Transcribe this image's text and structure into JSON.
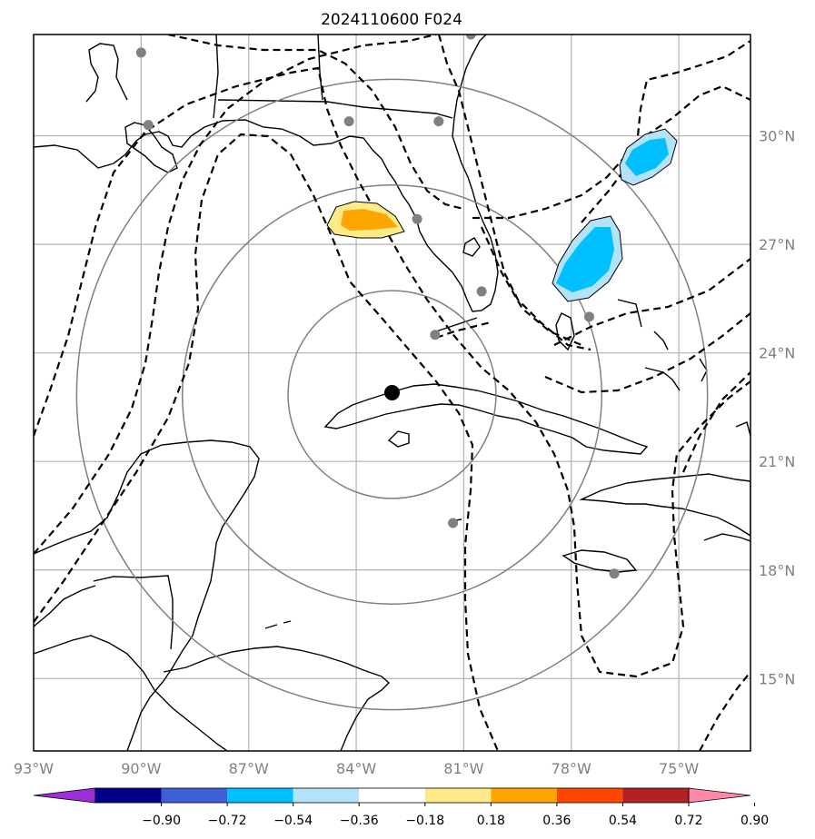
{
  "map": {
    "title": "2024110600 F024",
    "extent": {
      "lon": [
        -93,
        -73.0
      ],
      "lat": [
        13.0,
        32.8
      ]
    },
    "lon_ticks": [
      {
        "value": -93,
        "label": "93°W"
      },
      {
        "value": -90,
        "label": "90°W"
      },
      {
        "value": -87,
        "label": "87°W"
      },
      {
        "value": -84,
        "label": "84°W"
      },
      {
        "value": -81,
        "label": "81°W"
      },
      {
        "value": -78,
        "label": "78°W"
      },
      {
        "value": -75,
        "label": "75°W"
      }
    ],
    "lat_ticks": [
      {
        "value": 30,
        "label": "30°N"
      },
      {
        "value": 27,
        "label": "27°N"
      },
      {
        "value": 24,
        "label": "24°N"
      },
      {
        "value": 21,
        "label": "21°N"
      },
      {
        "value": 18,
        "label": "18°N"
      },
      {
        "value": 15,
        "label": "15°N"
      }
    ],
    "gridlines": true,
    "center_marker": {
      "lon": -83.0,
      "lat": 22.9
    },
    "range_rings_deg": [
      2.9,
      5.85,
      8.8
    ],
    "grey_points": [
      {
        "lon": -90.0,
        "lat": 32.3
      },
      {
        "lon": -89.8,
        "lat": 30.3
      },
      {
        "lon": -84.2,
        "lat": 30.4
      },
      {
        "lon": -81.7,
        "lat": 30.4
      },
      {
        "lon": -80.8,
        "lat": 32.8
      },
      {
        "lon": -82.3,
        "lat": 27.7
      },
      {
        "lon": -80.5,
        "lat": 25.7
      },
      {
        "lon": -81.8,
        "lat": 24.5
      },
      {
        "lon": -77.5,
        "lat": 25.0
      },
      {
        "lon": -81.3,
        "lat": 19.3
      },
      {
        "lon": -76.8,
        "lat": 17.9
      }
    ],
    "colors": {
      "grid": "#b0b0b0",
      "rings": "#808080",
      "coast": "#000000",
      "points": "#808080"
    }
  },
  "colorbar": {
    "tick_labels": [
      "−0.90",
      "−0.72",
      "−0.54",
      "−0.36",
      "−0.18",
      "0.18",
      "0.36",
      "0.54",
      "0.72",
      "0.90"
    ],
    "colors": [
      "#9b30d9",
      "#00008b",
      "#3c5fd6",
      "#00bfff",
      "#b3e2fb",
      "#ffffff",
      "#ffea8a",
      "#ffa500",
      "#ff4500",
      "#b22222",
      "#ff88aa"
    ],
    "extend": "both"
  }
}
